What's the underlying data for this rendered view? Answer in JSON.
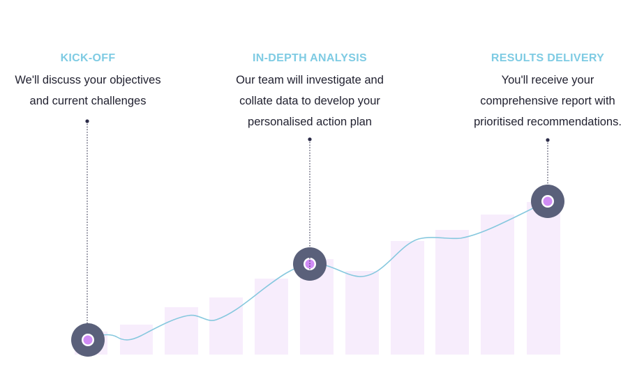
{
  "colors": {
    "title": "#7ecbe3",
    "body": "#1f1f2e",
    "bar": "#f7edfc",
    "curve": "#86c8de",
    "marker_ring": "#5a607a",
    "marker_core": "#d08cf5",
    "connector": "#2b2b48"
  },
  "steps": [
    {
      "title": "KICK-OFF",
      "lines": [
        "We'll discuss your objectives",
        "and current challenges"
      ]
    },
    {
      "title": "IN-DEPTH ANALYSIS",
      "lines": [
        "Our team will investigate and",
        "collate data to develop your",
        "personalised action plan"
      ]
    },
    {
      "title": "RESULTS DELIVERY",
      "lines": [
        "You'll receive your",
        "comprehensive report with",
        "prioritised recommendations."
      ]
    }
  ]
}
